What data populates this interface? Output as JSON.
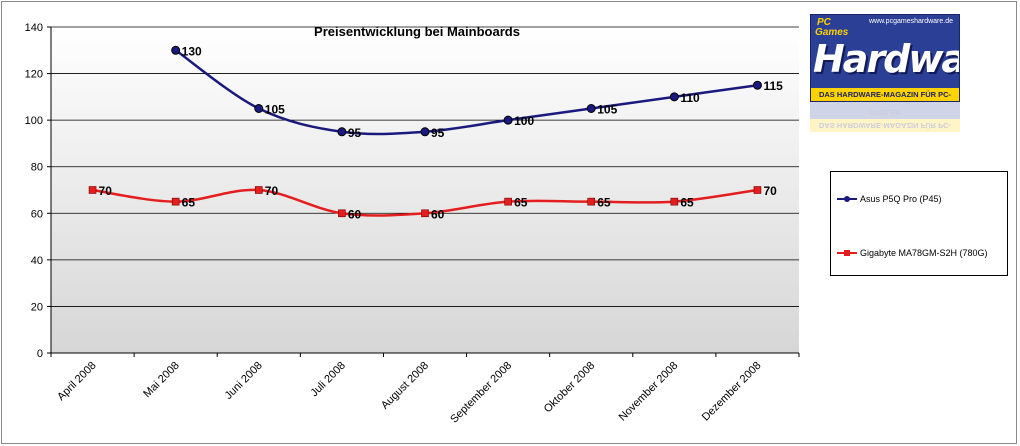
{
  "chart_data": {
    "type": "line",
    "title": "Preisentwicklung bei Mainboards",
    "categories": [
      "April 2008",
      "Mai 2008",
      "Juni 2008",
      "Juli 2008",
      "August 2008",
      "September 2008",
      "Oktober 2008",
      "November 2008",
      "Dezember 2008"
    ],
    "ylim": [
      0,
      140
    ],
    "yticks": [
      0,
      20,
      40,
      60,
      80,
      100,
      120,
      140
    ],
    "grid": true,
    "legend_position": "right",
    "series": [
      {
        "name": "Asus P5Q Pro (P45)",
        "color": "#1a1a7e",
        "marker": "circle",
        "values": [
          null,
          130,
          105,
          95,
          95,
          100,
          105,
          110,
          115
        ]
      },
      {
        "name": "Gigabyte  MA78GM-S2H (780G)",
        "color": "#e41e1e",
        "marker": "square",
        "values": [
          70,
          65,
          70,
          60,
          60,
          65,
          65,
          65,
          70
        ]
      }
    ]
  },
  "logo": {
    "url": "www.pcgameshardware.de",
    "pc": "PC",
    "games": "Games",
    "word": "Hardware",
    "tagline": "DAS HARDWARE-MAGAZIN FÜR PC-SPIELER"
  }
}
